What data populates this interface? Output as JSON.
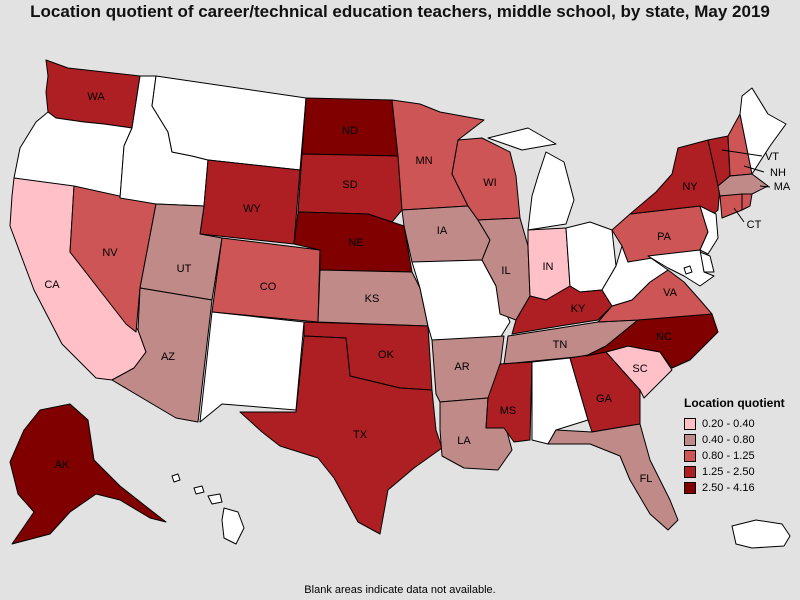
{
  "title": "Location quotient of career/technical education teachers, middle school, by state, May 2019",
  "footnote": "Blank areas indicate data not available.",
  "legend": {
    "title": "Location quotient",
    "ranges": [
      {
        "label": "0.20 - 0.40",
        "color": "#ffc0c8"
      },
      {
        "label": "0.40 - 0.80",
        "color": "#bf8a88"
      },
      {
        "label": "0.80 - 1.25",
        "color": "#cd5555"
      },
      {
        "label": "1.25 - 2.50",
        "color": "#ad1f22"
      },
      {
        "label": "2.50 - 4.16",
        "color": "#800000"
      }
    ]
  },
  "no_data_color": "#ffffff",
  "states": [
    {
      "code": "WA",
      "cls": 3
    },
    {
      "code": "OR",
      "cls": null
    },
    {
      "code": "CA",
      "cls": 0
    },
    {
      "code": "NV",
      "cls": 2
    },
    {
      "code": "ID",
      "cls": null
    },
    {
      "code": "MT",
      "cls": null
    },
    {
      "code": "WY",
      "cls": 3
    },
    {
      "code": "UT",
      "cls": 1
    },
    {
      "code": "AZ",
      "cls": 1
    },
    {
      "code": "CO",
      "cls": 2
    },
    {
      "code": "NM",
      "cls": null
    },
    {
      "code": "ND",
      "cls": 4
    },
    {
      "code": "SD",
      "cls": 3
    },
    {
      "code": "NE",
      "cls": 4
    },
    {
      "code": "KS",
      "cls": 1
    },
    {
      "code": "OK",
      "cls": 3
    },
    {
      "code": "TX",
      "cls": 3
    },
    {
      "code": "MN",
      "cls": 2
    },
    {
      "code": "IA",
      "cls": 1
    },
    {
      "code": "MO",
      "cls": null
    },
    {
      "code": "AR",
      "cls": 1
    },
    {
      "code": "LA",
      "cls": 1
    },
    {
      "code": "WI",
      "cls": 2
    },
    {
      "code": "IL",
      "cls": 1
    },
    {
      "code": "MI",
      "cls": null
    },
    {
      "code": "IN",
      "cls": 0
    },
    {
      "code": "OH",
      "cls": null
    },
    {
      "code": "KY",
      "cls": 3
    },
    {
      "code": "TN",
      "cls": 1
    },
    {
      "code": "MS",
      "cls": 3
    },
    {
      "code": "AL",
      "cls": null
    },
    {
      "code": "GA",
      "cls": 3
    },
    {
      "code": "FL",
      "cls": 1
    },
    {
      "code": "SC",
      "cls": 0
    },
    {
      "code": "NC",
      "cls": 4
    },
    {
      "code": "VA",
      "cls": 2
    },
    {
      "code": "WV",
      "cls": null
    },
    {
      "code": "PA",
      "cls": 2
    },
    {
      "code": "NY",
      "cls": 3
    },
    {
      "code": "VT",
      "cls": 3
    },
    {
      "code": "NH",
      "cls": 2
    },
    {
      "code": "ME",
      "cls": null
    },
    {
      "code": "MA",
      "cls": 1
    },
    {
      "code": "CT",
      "cls": 2
    },
    {
      "code": "RI",
      "cls": 2
    },
    {
      "code": "NJ",
      "cls": null
    },
    {
      "code": "DE",
      "cls": null
    },
    {
      "code": "MD",
      "cls": null
    },
    {
      "code": "DC",
      "cls": null
    },
    {
      "code": "AK",
      "cls": 4
    },
    {
      "code": "HI",
      "cls": null
    },
    {
      "code": "PR",
      "cls": null
    }
  ]
}
